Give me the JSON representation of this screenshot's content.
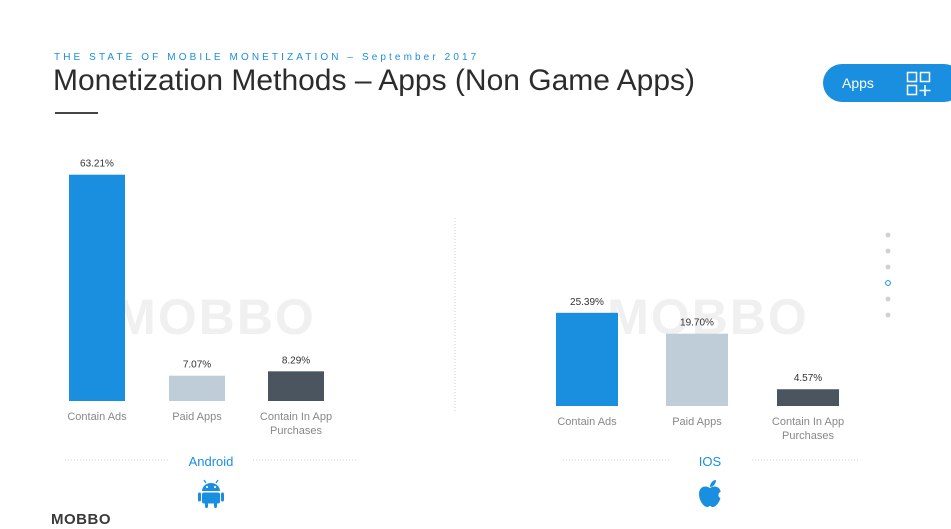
{
  "header": {
    "kicker": "THE STATE OF MOBILE MONETIZATION – September 2017",
    "title": "Monetization Methods – Apps (Non Game Apps)"
  },
  "tab": {
    "label": "Apps",
    "icon": "grid-plus-icon"
  },
  "watermark": "MOBBO",
  "brand": "MOBBO",
  "colors": {
    "contain_ads": "#1a8fe0",
    "paid_apps": "#bfcdd9",
    "in_app": "#4b5560",
    "accent": "#1a8fe0"
  },
  "chart_data": [
    {
      "type": "bar",
      "group": "Android",
      "icon": "android-icon",
      "categories": [
        "Contain Ads",
        "Paid Apps",
        "Contain In App Purchases"
      ],
      "values": [
        63.21,
        7.07,
        8.29
      ],
      "value_labels": [
        "63.21%",
        "7.07%",
        "8.29%"
      ],
      "unit": "%",
      "grid": false
    },
    {
      "type": "bar",
      "group": "IOS",
      "icon": "apple-icon",
      "categories": [
        "Contain Ads",
        "Paid Apps",
        "Contain In App Purchases"
      ],
      "values": [
        25.39,
        19.7,
        4.57
      ],
      "value_labels": [
        "25.39%",
        "19.70%",
        "4.57%"
      ],
      "unit": "%",
      "grid": false
    }
  ]
}
